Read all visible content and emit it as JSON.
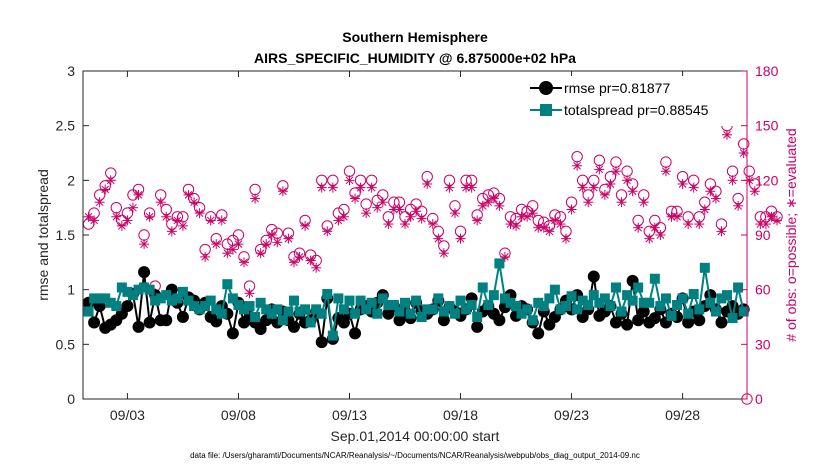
{
  "chart_data": {
    "type": "line",
    "title_line1": "Southern Hemisphere",
    "title_line2": "AIRS_SPECIFIC_HUMIDITY @ 6.875000e+02 hPa",
    "xlabel": "Sep.01,2014 00:00:00 start",
    "ylabel_left": "rmse and totalspread",
    "ylabel_right": "# of obs: o=possible; ∗=evaluated",
    "footnote": "data file: /Users/gharamti/Documents/NCAR/Reanalysis/~/Documents/NCAR/Reanalysis/webpub/obs_diag_output_2014-09.nc",
    "xlim_days": [
      1.0,
      30.9
    ],
    "ylim_left": [
      0,
      3
    ],
    "ylim_right": [
      0,
      180
    ],
    "x_ticks": [
      {
        "day": 3,
        "label": "09/03"
      },
      {
        "day": 8,
        "label": "09/08"
      },
      {
        "day": 13,
        "label": "09/13"
      },
      {
        "day": 18,
        "label": "09/18"
      },
      {
        "day": 23,
        "label": "09/23"
      },
      {
        "day": 28,
        "label": "09/28"
      }
    ],
    "y_ticks_left": [
      {
        "v": 0,
        "label": "0"
      },
      {
        "v": 0.5,
        "label": "0.5"
      },
      {
        "v": 1,
        "label": "1"
      },
      {
        "v": 1.5,
        "label": "1.5"
      },
      {
        "v": 2,
        "label": "2"
      },
      {
        "v": 2.5,
        "label": "2.5"
      },
      {
        "v": 3,
        "label": "3"
      }
    ],
    "y_ticks_right": [
      {
        "v": 0,
        "label": "0"
      },
      {
        "v": 30,
        "label": "30"
      },
      {
        "v": 60,
        "label": "60"
      },
      {
        "v": 90,
        "label": "90"
      },
      {
        "v": 120,
        "label": "120"
      },
      {
        "v": 150,
        "label": "150"
      },
      {
        "v": 180,
        "label": "180"
      }
    ],
    "time_step_days": 0.25,
    "series": [
      {
        "name": "rmse",
        "legend": "rmse pr=0.81877",
        "color": "#000000",
        "values": [
          0.88,
          0.7,
          0.85,
          0.65,
          0.68,
          0.72,
          0.78,
          0.85,
          0.96,
          0.66,
          1.16,
          0.7,
          0.95,
          0.72,
          0.72,
          1.0,
          0.88,
          0.75,
          0.93,
          0.9,
          0.82,
          0.88,
          0.75,
          0.71,
          0.85,
          0.78,
          0.6,
          0.88,
          0.7,
          0.75,
          0.7,
          0.64,
          0.72,
          0.82,
          0.7,
          0.8,
          0.72,
          0.66,
          0.78,
          0.7,
          0.72,
          0.8,
          0.52,
          0.92,
          0.55,
          0.74,
          0.7,
          0.78,
          0.6,
          0.82,
          0.85,
          0.8,
          0.88,
          0.95,
          0.78,
          0.85,
          0.72,
          0.8,
          0.74,
          0.88,
          0.8,
          0.78,
          0.82,
          0.9,
          0.72,
          0.84,
          0.8,
          0.76,
          0.82,
          0.92,
          0.66,
          0.8,
          0.85,
          0.78,
          0.72,
          0.84,
          0.95,
          0.76,
          0.85,
          0.82,
          0.7,
          0.6,
          0.8,
          0.68,
          0.75,
          0.82,
          0.9,
          0.82,
          0.95,
          0.75,
          0.82,
          1.12,
          0.76,
          0.8,
          0.85,
          0.7,
          0.78,
          0.68,
          1.08,
          0.72,
          0.8,
          0.7,
          0.74,
          0.82,
          0.7,
          0.78,
          0.75,
          0.92,
          0.7,
          0.8,
          0.72,
          0.85,
          0.95,
          0.82,
          0.7,
          0.8,
          0.85,
          0.78,
          0.82
        ],
        "_units": "rmse in data units; x = 1.25 + 0.25*index days"
      },
      {
        "name": "totalspread",
        "legend": "totalspread pr=0.88545",
        "color": "#008080",
        "values": [
          0.8,
          0.92,
          0.92,
          0.92,
          0.88,
          0.85,
          1.02,
          0.98,
          0.95,
          1.0,
          1.02,
          1.0,
          0.9,
          0.92,
          0.95,
          0.9,
          0.92,
          0.98,
          0.9,
          0.85,
          0.82,
          0.85,
          0.9,
          0.82,
          0.78,
          1.05,
          0.92,
          0.86,
          0.82,
          0.85,
          0.75,
          0.88,
          0.82,
          0.78,
          0.82,
          0.72,
          0.8,
          0.9,
          0.8,
          0.82,
          0.7,
          0.82,
          0.78,
          0.96,
          0.58,
          0.92,
          0.82,
          0.9,
          0.78,
          0.9,
          0.82,
          0.88,
          0.78,
          0.92,
          0.86,
          0.86,
          0.8,
          0.88,
          0.78,
          0.9,
          0.75,
          0.82,
          0.82,
          0.92,
          0.8,
          0.85,
          0.78,
          0.9,
          0.82,
          0.86,
          0.75,
          1.02,
          0.86,
          0.95,
          1.24,
          0.92,
          0.88,
          0.85,
          0.78,
          0.82,
          0.72,
          0.88,
          0.85,
          0.92,
          1.0,
          0.82,
          0.85,
          0.94,
          0.82,
          0.9,
          0.86,
          0.95,
          0.88,
          0.92,
          0.85,
          1.02,
          0.8,
          0.95,
          0.9,
          1.02,
          0.88,
          0.88,
          1.1,
          0.85,
          0.92,
          0.76,
          0.86,
          0.92,
          0.78,
          0.96,
          0.82,
          1.2,
          0.88,
          0.8,
          0.92,
          0.95,
          0.74,
          1.02,
          0.8
        ]
      },
      {
        "name": "possible observations",
        "marker": "circle",
        "color": "#cc0066",
        "axis": "right",
        "values": [
          96,
          102,
          112,
          117,
          124,
          105,
          98,
          102,
          112,
          115,
          90,
          102,
          62,
          112,
          104,
          96,
          100,
          100,
          115,
          110,
          105,
          82,
          100,
          88,
          101,
          85,
          87,
          90,
          78,
          62,
          115,
          82,
          87,
          93,
          91,
          117,
          91,
          78,
          80,
          98,
          79,
          76,
          120,
          95,
          120,
          102,
          104,
          125,
          113,
          120,
          107,
          120,
          109,
          112,
          100,
          108,
          108,
          100,
          104,
          107,
          103,
          122,
          99,
          92,
          84,
          120,
          106,
          92,
          120,
          120,
          101,
          110,
          112,
          113,
          110,
          80,
          100,
          99,
          104,
          103,
          106,
          98,
          97,
          95,
          101,
          100,
          92,
          108,
          133,
          120,
          112,
          120,
          131,
          115,
          122,
          130,
          112,
          125,
          118,
          98,
          112,
          92,
          98,
          94,
          130,
          103,
          103,
          122,
          100,
          120,
          100,
          108,
          118,
          114,
          96,
          150,
          125,
          110,
          140,
          125,
          118,
          100,
          100,
          103,
          100
        ]
      },
      {
        "name": "evaluated observations",
        "marker": "asterisk",
        "color": "#cc0066",
        "axis": "right",
        "values": [
          100,
          98,
          108,
          115,
          120,
          100,
          95,
          98,
          105,
          112,
          85,
          100,
          58,
          108,
          100,
          92,
          98,
          95,
          112,
          108,
          102,
          78,
          98,
          85,
          98,
          80,
          82,
          85,
          75,
          58,
          110,
          80,
          85,
          90,
          86,
          114,
          88,
          75,
          78,
          95,
          76,
          72,
          116,
          92,
          116,
          98,
          100,
          120,
          110,
          116,
          102,
          116,
          105,
          108,
          96,
          104,
          104,
          96,
          100,
          103,
          99,
          118,
          96,
          88,
          80,
          116,
          102,
          88,
          116,
          116,
          98,
          106,
          108,
          110,
          106,
          78,
          96,
          95,
          100,
          100,
          102,
          94,
          94,
          92,
          98,
          96,
          88,
          104,
          128,
          116,
          108,
          116,
          126,
          112,
          118,
          125,
          108,
          120,
          114,
          94,
          108,
          88,
          94,
          90,
          125,
          100,
          100,
          118,
          96,
          116,
          96,
          104,
          114,
          110,
          92,
          145,
          120,
          106,
          135,
          120,
          114,
          96,
          96,
          100,
          98
        ]
      }
    ]
  }
}
